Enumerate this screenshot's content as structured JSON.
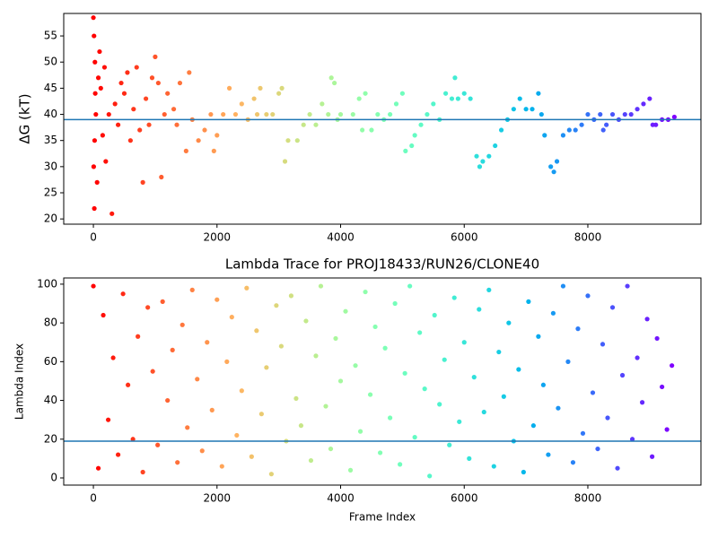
{
  "chart_data": [
    {
      "type": "scatter",
      "ylabel": "ΔG (kT)",
      "colormap": "rainbow_r",
      "x": [
        0,
        5,
        10,
        15,
        20,
        25,
        30,
        40,
        60,
        80,
        100,
        120,
        150,
        180,
        200,
        250,
        300,
        350,
        400,
        450,
        500,
        550,
        600,
        650,
        700,
        750,
        800,
        850,
        900,
        950,
        1000,
        1050,
        1100,
        1150,
        1200,
        1300,
        1350,
        1400,
        1500,
        1550,
        1600,
        1700,
        1800,
        1900,
        1950,
        2000,
        2100,
        2200,
        2300,
        2400,
        2500,
        2600,
        2650,
        2700,
        2800,
        2900,
        3000,
        3050,
        3100,
        3150,
        3300,
        3400,
        3500,
        3600,
        3700,
        3800,
        3850,
        3900,
        3950,
        4000,
        4200,
        4300,
        4350,
        4400,
        4500,
        4600,
        4700,
        4800,
        4900,
        5000,
        5050,
        5150,
        5200,
        5300,
        5400,
        5500,
        5600,
        5700,
        5800,
        5850,
        5900,
        6000,
        6100,
        6200,
        6250,
        6300,
        6400,
        6500,
        6600,
        6700,
        6800,
        6900,
        7000,
        7100,
        7200,
        7250,
        7300,
        7400,
        7450,
        7500,
        7600,
        7700,
        7800,
        7900,
        8000,
        8100,
        8200,
        8250,
        8300,
        8400,
        8500,
        8600,
        8700,
        8800,
        8900,
        9000,
        9050,
        9100,
        9200,
        9300,
        9400
      ],
      "values": [
        58.5,
        30,
        55,
        22,
        35,
        50,
        44,
        40,
        27,
        47,
        52,
        45,
        36,
        49,
        31,
        40,
        21,
        42,
        38,
        46,
        44,
        48,
        35,
        41,
        49,
        37,
        27,
        43,
        38,
        47,
        51,
        46,
        28,
        40,
        44,
        41,
        38,
        46,
        33,
        48,
        39,
        35,
        37,
        40,
        33,
        36,
        40,
        45,
        40,
        42,
        39,
        43,
        40,
        45,
        40,
        40,
        44,
        45,
        31,
        35,
        35,
        38,
        40,
        38,
        42,
        40,
        47,
        46,
        39,
        40,
        40,
        43,
        37,
        44,
        37,
        40,
        39,
        40,
        42,
        44,
        33,
        34,
        36,
        38,
        40,
        42,
        39,
        44,
        43,
        47,
        43,
        44,
        43,
        32,
        30,
        31,
        32,
        34,
        37,
        39,
        41,
        43,
        41,
        41,
        44,
        40,
        36,
        30,
        29,
        31,
        36,
        37,
        37,
        38,
        40,
        39,
        40,
        37,
        38,
        40,
        39,
        40,
        40,
        41,
        42,
        43,
        38,
        38,
        39,
        39,
        39.5
      ],
      "hline": 39,
      "hline_color": "#1f77b4",
      "xlim": [
        -480,
        9830
      ],
      "xticks": [
        0,
        2000,
        4000,
        6000,
        8000
      ],
      "ylim": [
        19,
        59.3
      ],
      "yticks": [
        20,
        25,
        30,
        35,
        40,
        45,
        50,
        55
      ]
    },
    {
      "type": "scatter",
      "title": "Lambda Trace for PROJ18433/RUN26/CLONE40",
      "xlabel": "Frame Index",
      "ylabel": "Lambda Index",
      "colormap": "rainbow_r",
      "x": [
        0,
        80,
        160,
        240,
        320,
        400,
        480,
        560,
        640,
        720,
        800,
        880,
        960,
        1040,
        1120,
        1200,
        1280,
        1360,
        1440,
        1520,
        1600,
        1680,
        1760,
        1840,
        1920,
        2000,
        2080,
        2160,
        2240,
        2320,
        2400,
        2480,
        2560,
        2640,
        2720,
        2800,
        2880,
        2960,
        3040,
        3120,
        3200,
        3280,
        3360,
        3440,
        3520,
        3600,
        3680,
        3760,
        3840,
        3920,
        4000,
        4080,
        4160,
        4240,
        4320,
        4400,
        4480,
        4560,
        4640,
        4720,
        4800,
        4880,
        4960,
        5040,
        5120,
        5200,
        5280,
        5360,
        5440,
        5520,
        5600,
        5680,
        5760,
        5840,
        5920,
        6000,
        6080,
        6160,
        6240,
        6320,
        6400,
        6480,
        6560,
        6640,
        6720,
        6800,
        6880,
        6960,
        7040,
        7120,
        7200,
        7280,
        7360,
        7440,
        7520,
        7600,
        7680,
        7760,
        7840,
        7920,
        8000,
        8080,
        8160,
        8240,
        8320,
        8400,
        8480,
        8560,
        8640,
        8720,
        8800,
        8880,
        8960,
        9040,
        9120,
        9200,
        9280,
        9360
      ],
      "values": [
        99,
        5,
        84,
        30,
        62,
        12,
        95,
        48,
        20,
        73,
        3,
        88,
        55,
        17,
        91,
        40,
        66,
        8,
        79,
        26,
        97,
        51,
        14,
        70,
        35,
        92,
        6,
        60,
        83,
        22,
        45,
        98,
        11,
        76,
        33,
        57,
        2,
        89,
        68,
        19,
        94,
        41,
        27,
        81,
        9,
        63,
        99,
        37,
        15,
        72,
        50,
        86,
        4,
        58,
        24,
        96,
        43,
        78,
        13,
        67,
        31,
        90,
        7,
        54,
        99,
        21,
        75,
        46,
        1,
        84,
        38,
        61,
        17,
        93,
        29,
        70,
        10,
        52,
        87,
        34,
        97,
        6,
        65,
        42,
        80,
        19,
        56,
        3,
        91,
        27,
        73,
        48,
        12,
        85,
        36,
        99,
        60,
        8,
        77,
        23,
        94,
        44,
        15,
        69,
        31,
        88,
        5,
        53,
        99,
        20,
        62,
        39,
        82,
        11,
        72,
        47,
        25,
        58
      ],
      "hline": 19,
      "hline_color": "#1f77b4",
      "xlim": [
        -480,
        9830
      ],
      "xticks": [
        0,
        2000,
        4000,
        6000,
        8000
      ],
      "ylim": [
        -3.7,
        103.2
      ],
      "yticks": [
        0,
        20,
        40,
        60,
        80,
        100
      ]
    }
  ]
}
